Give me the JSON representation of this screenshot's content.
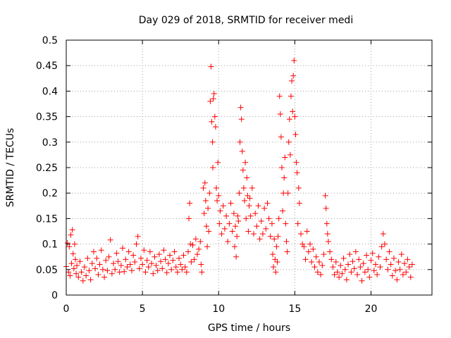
{
  "chart_data": {
    "type": "scatter",
    "title": "Day 029 of 2018, SRMTID for receiver medi",
    "xlabel": "GPS time / hours",
    "ylabel": "SRMTID / TECUs",
    "xlim": [
      0,
      24
    ],
    "ylim": [
      0,
      0.5
    ],
    "xticks": [
      0,
      5,
      10,
      15,
      20
    ],
    "xtick_labels": [
      "0",
      "5",
      "10",
      "15",
      "20"
    ],
    "yticks": [
      0,
      0.05,
      0.1,
      0.15,
      0.2,
      0.25,
      0.3,
      0.35,
      0.4,
      0.45,
      0.5
    ],
    "ytick_labels": [
      "0",
      "0.05",
      "0.1",
      "0.15",
      "0.2",
      "0.25",
      "0.3",
      "0.35",
      "0.4",
      "0.45",
      "0.5"
    ],
    "grid": true,
    "marker": "+",
    "color": "#ff0000",
    "series": [
      {
        "name": "SRMTID",
        "points": [
          [
            0.0,
            0.056
          ],
          [
            0.08,
            0.102
          ],
          [
            0.15,
            0.045
          ],
          [
            0.2,
            0.095
          ],
          [
            0.25,
            0.038
          ],
          [
            0.3,
            0.118
          ],
          [
            0.35,
            0.062
          ],
          [
            0.4,
            0.128
          ],
          [
            0.45,
            0.081
          ],
          [
            0.5,
            0.052
          ],
          [
            0.55,
            0.1
          ],
          [
            0.6,
            0.07
          ],
          [
            0.65,
            0.042
          ],
          [
            0.7,
            0.058
          ],
          [
            0.8,
            0.035
          ],
          [
            0.9,
            0.066
          ],
          [
            1.0,
            0.045
          ],
          [
            1.1,
            0.028
          ],
          [
            1.2,
            0.055
          ],
          [
            1.3,
            0.038
          ],
          [
            1.4,
            0.072
          ],
          [
            1.5,
            0.048
          ],
          [
            1.6,
            0.03
          ],
          [
            1.7,
            0.062
          ],
          [
            1.8,
            0.085
          ],
          [
            1.9,
            0.052
          ],
          [
            2.0,
            0.072
          ],
          [
            2.1,
            0.04
          ],
          [
            2.2,
            0.06
          ],
          [
            2.3,
            0.088
          ],
          [
            2.4,
            0.05
          ],
          [
            2.5,
            0.035
          ],
          [
            2.6,
            0.068
          ],
          [
            2.7,
            0.048
          ],
          [
            2.8,
            0.075
          ],
          [
            2.9,
            0.108
          ],
          [
            3.0,
            0.042
          ],
          [
            3.1,
            0.062
          ],
          [
            3.2,
            0.05
          ],
          [
            3.3,
            0.082
          ],
          [
            3.4,
            0.066
          ],
          [
            3.5,
            0.045
          ],
          [
            3.6,
            0.058
          ],
          [
            3.7,
            0.092
          ],
          [
            3.8,
            0.046
          ],
          [
            3.9,
            0.07
          ],
          [
            4.0,
            0.055
          ],
          [
            4.1,
            0.085
          ],
          [
            4.2,
            0.06
          ],
          [
            4.3,
            0.048
          ],
          [
            4.4,
            0.078
          ],
          [
            4.5,
            0.065
          ],
          [
            4.6,
            0.1
          ],
          [
            4.7,
            0.115
          ],
          [
            4.8,
            0.052
          ],
          [
            4.9,
            0.072
          ],
          [
            5.0,
            0.06
          ],
          [
            5.1,
            0.088
          ],
          [
            5.2,
            0.045
          ],
          [
            5.3,
            0.068
          ],
          [
            5.4,
            0.055
          ],
          [
            5.5,
            0.085
          ],
          [
            5.6,
            0.062
          ],
          [
            5.7,
            0.042
          ],
          [
            5.8,
            0.075
          ],
          [
            5.9,
            0.058
          ],
          [
            6.0,
            0.048
          ],
          [
            6.1,
            0.08
          ],
          [
            6.2,
            0.066
          ],
          [
            6.3,
            0.052
          ],
          [
            6.4,
            0.088
          ],
          [
            6.5,
            0.07
          ],
          [
            6.6,
            0.044
          ],
          [
            6.7,
            0.062
          ],
          [
            6.8,
            0.078
          ],
          [
            6.9,
            0.05
          ],
          [
            7.0,
            0.068
          ],
          [
            7.1,
            0.085
          ],
          [
            7.2,
            0.055
          ],
          [
            7.3,
            0.045
          ],
          [
            7.4,
            0.072
          ],
          [
            7.5,
            0.06
          ],
          [
            7.6,
            0.05
          ],
          [
            7.7,
            0.078
          ],
          [
            7.8,
            0.055
          ],
          [
            7.9,
            0.045
          ],
          [
            8.0,
            0.085
          ],
          [
            8.05,
            0.15
          ],
          [
            8.1,
            0.18
          ],
          [
            8.15,
            0.1
          ],
          [
            8.2,
            0.065
          ],
          [
            8.3,
            0.098
          ],
          [
            8.4,
            0.07
          ],
          [
            8.5,
            0.11
          ],
          [
            8.6,
            0.08
          ],
          [
            8.7,
            0.09
          ],
          [
            8.8,
            0.105
          ],
          [
            8.85,
            0.06
          ],
          [
            8.9,
            0.045
          ],
          [
            9.0,
            0.21
          ],
          [
            9.05,
            0.16
          ],
          [
            9.1,
            0.22
          ],
          [
            9.15,
            0.185
          ],
          [
            9.2,
            0.135
          ],
          [
            9.25,
            0.095
          ],
          [
            9.3,
            0.17
          ],
          [
            9.35,
            0.125
          ],
          [
            9.4,
            0.2
          ],
          [
            9.45,
            0.38
          ],
          [
            9.5,
            0.448
          ],
          [
            9.55,
            0.34
          ],
          [
            9.6,
            0.3
          ],
          [
            9.62,
            0.25
          ],
          [
            9.65,
            0.385
          ],
          [
            9.7,
            0.395
          ],
          [
            9.75,
            0.35
          ],
          [
            9.8,
            0.33
          ],
          [
            9.85,
            0.21
          ],
          [
            9.9,
            0.185
          ],
          [
            9.95,
            0.26
          ],
          [
            10.0,
            0.195
          ],
          [
            10.05,
            0.14
          ],
          [
            10.1,
            0.165
          ],
          [
            10.2,
            0.12
          ],
          [
            10.3,
            0.175
          ],
          [
            10.4,
            0.13
          ],
          [
            10.5,
            0.155
          ],
          [
            10.6,
            0.105
          ],
          [
            10.7,
            0.14
          ],
          [
            10.8,
            0.18
          ],
          [
            10.9,
            0.125
          ],
          [
            11.0,
            0.16
          ],
          [
            11.05,
            0.095
          ],
          [
            11.1,
            0.135
          ],
          [
            11.15,
            0.075
          ],
          [
            11.2,
            0.115
          ],
          [
            11.25,
            0.155
          ],
          [
            11.3,
            0.145
          ],
          [
            11.35,
            0.2
          ],
          [
            11.4,
            0.3
          ],
          [
            11.45,
            0.368
          ],
          [
            11.5,
            0.345
          ],
          [
            11.55,
            0.282
          ],
          [
            11.6,
            0.245
          ],
          [
            11.65,
            0.21
          ],
          [
            11.7,
            0.185
          ],
          [
            11.75,
            0.26
          ],
          [
            11.8,
            0.15
          ],
          [
            11.85,
            0.23
          ],
          [
            11.9,
            0.195
          ],
          [
            11.95,
            0.125
          ],
          [
            12.0,
            0.175
          ],
          [
            12.05,
            0.19
          ],
          [
            12.1,
            0.155
          ],
          [
            12.2,
            0.21
          ],
          [
            12.3,
            0.12
          ],
          [
            12.4,
            0.16
          ],
          [
            12.5,
            0.135
          ],
          [
            12.6,
            0.175
          ],
          [
            12.7,
            0.11
          ],
          [
            12.8,
            0.145
          ],
          [
            12.9,
            0.12
          ],
          [
            13.0,
            0.17
          ],
          [
            13.1,
            0.13
          ],
          [
            13.2,
            0.18
          ],
          [
            13.3,
            0.15
          ],
          [
            13.4,
            0.115
          ],
          [
            13.5,
            0.14
          ],
          [
            13.55,
            0.08
          ],
          [
            13.6,
            0.055
          ],
          [
            13.65,
            0.11
          ],
          [
            13.7,
            0.07
          ],
          [
            13.75,
            0.045
          ],
          [
            13.8,
            0.095
          ],
          [
            13.85,
            0.065
          ],
          [
            13.9,
            0.115
          ],
          [
            13.95,
            0.15
          ],
          [
            14.0,
            0.39
          ],
          [
            14.05,
            0.355
          ],
          [
            14.1,
            0.31
          ],
          [
            14.15,
            0.25
          ],
          [
            14.2,
            0.165
          ],
          [
            14.25,
            0.2
          ],
          [
            14.3,
            0.23
          ],
          [
            14.35,
            0.27
          ],
          [
            14.4,
            0.14
          ],
          [
            14.45,
            0.105
          ],
          [
            14.5,
            0.085
          ],
          [
            14.55,
            0.2
          ],
          [
            14.6,
            0.3
          ],
          [
            14.65,
            0.345
          ],
          [
            14.7,
            0.275
          ],
          [
            14.75,
            0.39
          ],
          [
            14.8,
            0.42
          ],
          [
            14.85,
            0.36
          ],
          [
            14.9,
            0.43
          ],
          [
            14.95,
            0.46
          ],
          [
            15.0,
            0.35
          ],
          [
            15.05,
            0.315
          ],
          [
            15.1,
            0.26
          ],
          [
            15.15,
            0.24
          ],
          [
            15.2,
            0.14
          ],
          [
            15.25,
            0.21
          ],
          [
            15.3,
            0.18
          ],
          [
            15.4,
            0.12
          ],
          [
            15.5,
            0.1
          ],
          [
            15.6,
            0.095
          ],
          [
            15.7,
            0.07
          ],
          [
            15.8,
            0.125
          ],
          [
            15.9,
            0.085
          ],
          [
            16.0,
            0.1
          ],
          [
            16.1,
            0.065
          ],
          [
            16.2,
            0.09
          ],
          [
            16.3,
            0.055
          ],
          [
            16.4,
            0.075
          ],
          [
            16.5,
            0.045
          ],
          [
            16.6,
            0.065
          ],
          [
            16.7,
            0.04
          ],
          [
            16.8,
            0.058
          ],
          [
            16.9,
            0.08
          ],
          [
            17.0,
            0.195
          ],
          [
            17.05,
            0.17
          ],
          [
            17.1,
            0.14
          ],
          [
            17.15,
            0.12
          ],
          [
            17.2,
            0.105
          ],
          [
            17.3,
            0.085
          ],
          [
            17.4,
            0.07
          ],
          [
            17.5,
            0.055
          ],
          [
            17.6,
            0.04
          ],
          [
            17.7,
            0.065
          ],
          [
            17.8,
            0.045
          ],
          [
            17.9,
            0.035
          ],
          [
            18.0,
            0.058
          ],
          [
            18.1,
            0.042
          ],
          [
            18.2,
            0.072
          ],
          [
            18.3,
            0.05
          ],
          [
            18.4,
            0.03
          ],
          [
            18.5,
            0.06
          ],
          [
            18.6,
            0.08
          ],
          [
            18.7,
            0.045
          ],
          [
            18.8,
            0.066
          ],
          [
            18.9,
            0.052
          ],
          [
            19.0,
            0.085
          ],
          [
            19.1,
            0.04
          ],
          [
            19.2,
            0.07
          ],
          [
            19.3,
            0.055
          ],
          [
            19.4,
            0.028
          ],
          [
            19.5,
            0.062
          ],
          [
            19.6,
            0.045
          ],
          [
            19.7,
            0.078
          ],
          [
            19.8,
            0.05
          ],
          [
            19.9,
            0.035
          ],
          [
            20.0,
            0.068
          ],
          [
            20.1,
            0.082
          ],
          [
            20.2,
            0.048
          ],
          [
            20.3,
            0.06
          ],
          [
            20.4,
            0.04
          ],
          [
            20.5,
            0.075
          ],
          [
            20.6,
            0.055
          ],
          [
            20.7,
            0.095
          ],
          [
            20.8,
            0.12
          ],
          [
            20.9,
            0.1
          ],
          [
            21.0,
            0.07
          ],
          [
            21.1,
            0.05
          ],
          [
            21.2,
            0.085
          ],
          [
            21.3,
            0.06
          ],
          [
            21.4,
            0.038
          ],
          [
            21.5,
            0.072
          ],
          [
            21.6,
            0.048
          ],
          [
            21.7,
            0.03
          ],
          [
            21.8,
            0.065
          ],
          [
            21.9,
            0.05
          ],
          [
            22.0,
            0.08
          ],
          [
            22.1,
            0.04
          ],
          [
            22.2,
            0.062
          ],
          [
            22.3,
            0.045
          ],
          [
            22.4,
            0.07
          ],
          [
            22.5,
            0.055
          ],
          [
            22.6,
            0.035
          ],
          [
            22.7,
            0.06
          ]
        ]
      }
    ]
  }
}
